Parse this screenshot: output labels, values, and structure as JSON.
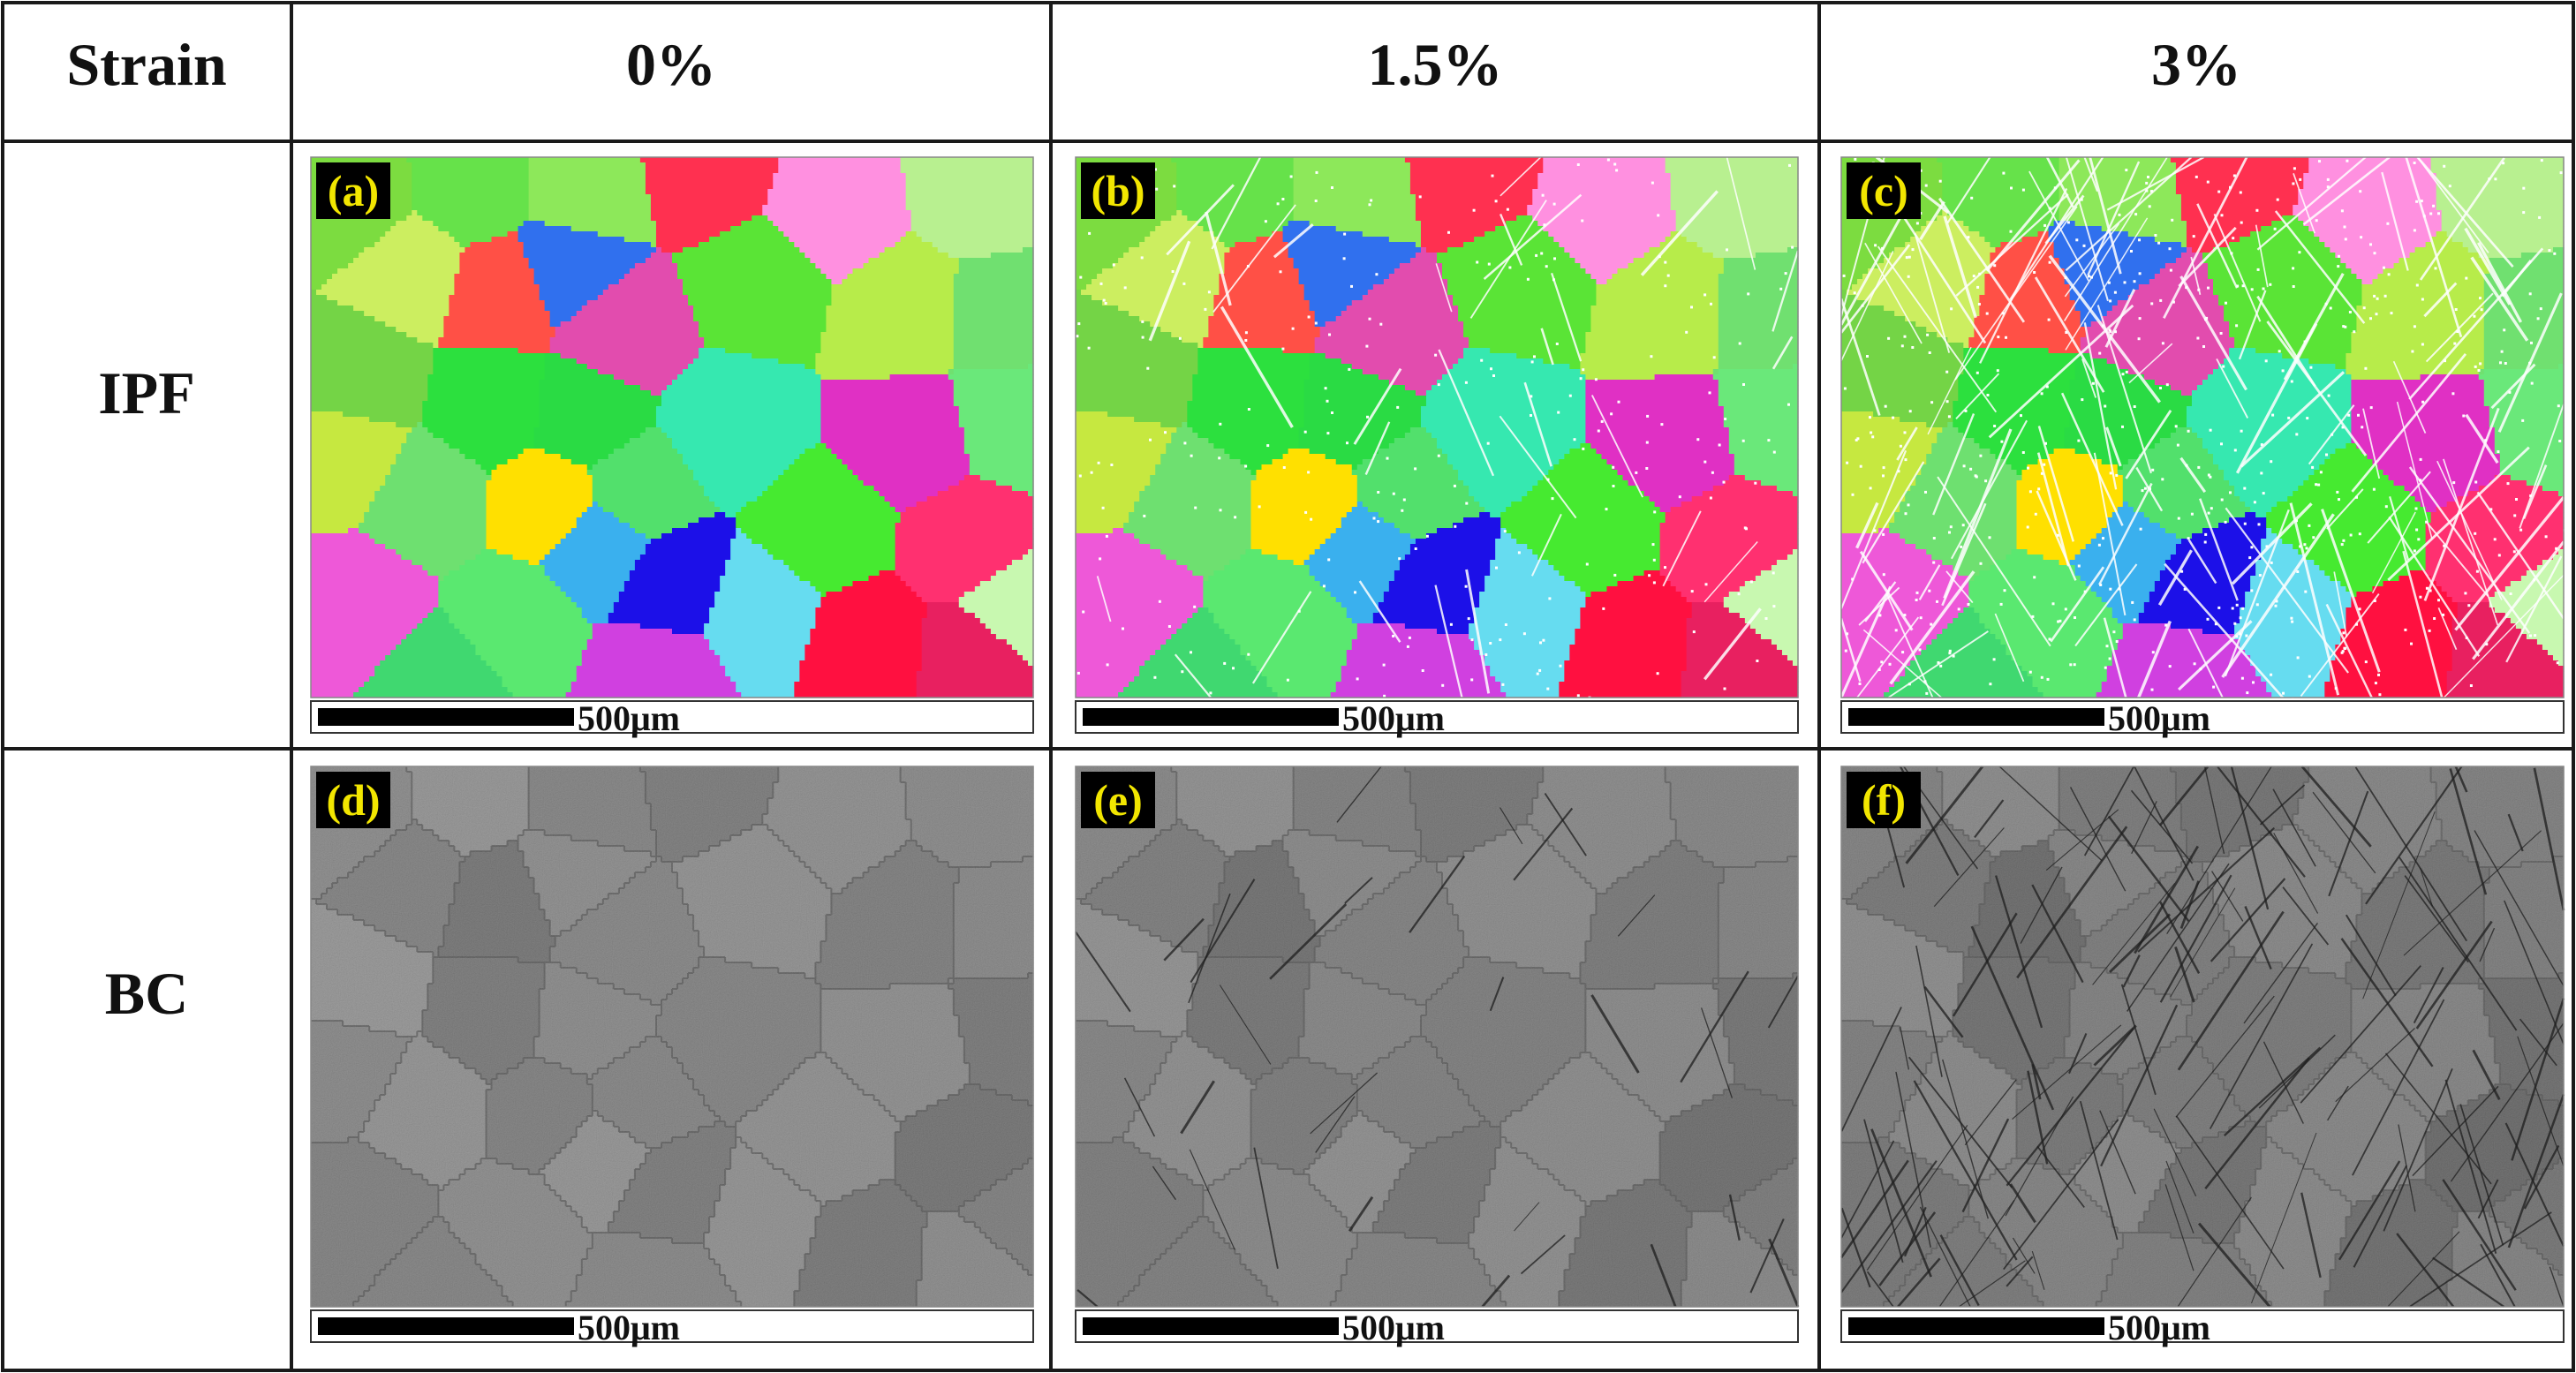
{
  "table": {
    "corner": "Strain",
    "columns": [
      "0%",
      "1.5%",
      "3%"
    ],
    "rows": [
      "IPF",
      "BC"
    ]
  },
  "panels": [
    {
      "tag": "(a)",
      "kind": "IPF",
      "strain_index": 0,
      "scale": "500μm"
    },
    {
      "tag": "(b)",
      "kind": "IPF",
      "strain_index": 1,
      "scale": "500μm"
    },
    {
      "tag": "(c)",
      "kind": "IPF",
      "strain_index": 2,
      "scale": "500μm"
    },
    {
      "tag": "(d)",
      "kind": "BC",
      "strain_index": 0,
      "scale": "500μm"
    },
    {
      "tag": "(e)",
      "kind": "BC",
      "strain_index": 1,
      "scale": "500μm"
    },
    {
      "tag": "(f)",
      "kind": "BC",
      "strain_index": 2,
      "scale": "500μm"
    }
  ],
  "colors": {
    "border": "#1a1a1a",
    "tag_background": "#000000",
    "tag_text": "#f2e600",
    "bc_base": "#7d7d7d"
  }
}
